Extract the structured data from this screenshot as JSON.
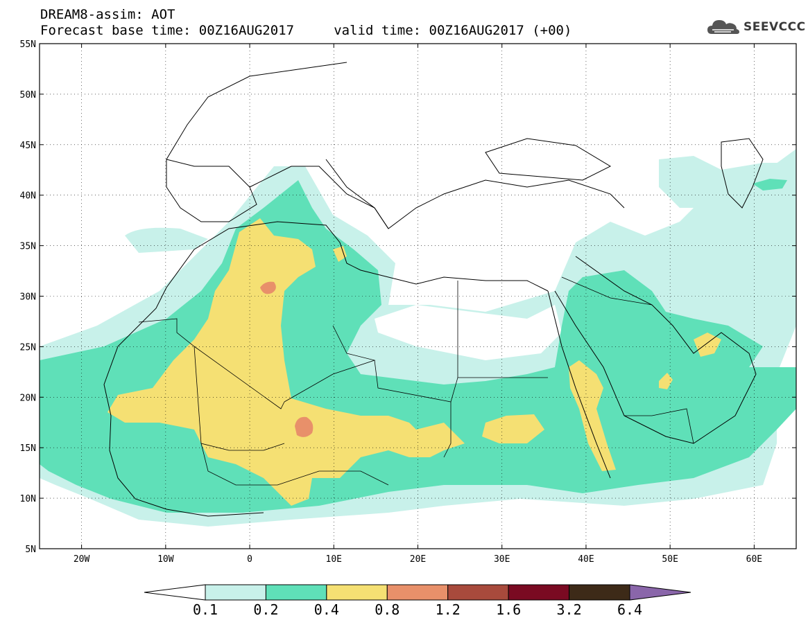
{
  "header": {
    "line1": "DREAM8-assim: AOT",
    "line2": "Forecast base time: 00Z16AUG2017     valid time: 00Z16AUG2017 (+00)",
    "brand": "SEEVCCC"
  },
  "map": {
    "lat_labels": [
      "55N",
      "50N",
      "45N",
      "40N",
      "35N",
      "30N",
      "25N",
      "20N",
      "15N",
      "10N",
      "5N"
    ],
    "lon_labels": [
      "20W",
      "10W",
      "0",
      "10E",
      "20E",
      "30E",
      "40E",
      "50E",
      "60E"
    ],
    "lon_range": [
      -25,
      65
    ],
    "lat_range": [
      5,
      55
    ],
    "variable": "Aerosol Optical Thickness"
  },
  "colorbar": {
    "labels": [
      "0.1",
      "0.2",
      "0.4",
      "0.8",
      "1.2",
      "1.6",
      "3.2",
      "6.4"
    ],
    "colors": [
      "#ffffff",
      "#c8f1ea",
      "#5fe0b8",
      "#f5e073",
      "#e8906a",
      "#a84a3c",
      "#7a0a22",
      "#3d2a18",
      "#8a66aa"
    ]
  }
}
